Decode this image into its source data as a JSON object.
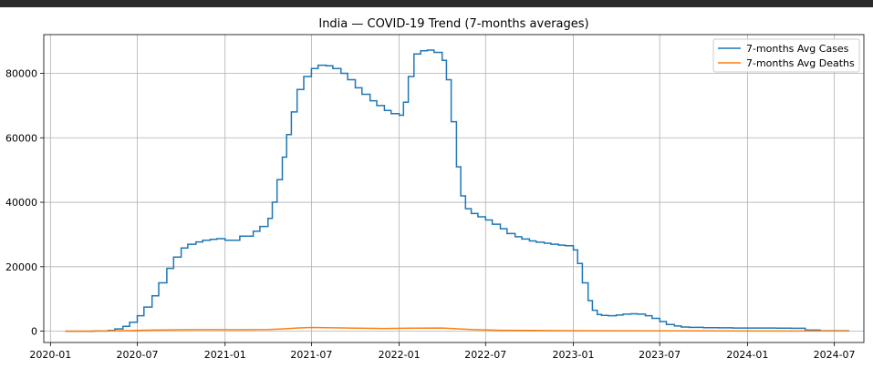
{
  "chart_data": {
    "type": "line",
    "title": "India — COVID-19 Trend (7-months averages)",
    "xlabel": "",
    "ylabel": "",
    "xlim": [
      "2019-12-18",
      "2024-09-01"
    ],
    "ylim": [
      -3500,
      92000
    ],
    "x_ticks": [
      "2020-01",
      "2020-07",
      "2021-01",
      "2021-07",
      "2022-01",
      "2022-07",
      "2023-01",
      "2023-07",
      "2024-01",
      "2024-07"
    ],
    "y_ticks": [
      0,
      20000,
      40000,
      60000,
      80000
    ],
    "y_tick_labels": [
      "0",
      "20000",
      "40000",
      "60000",
      "80000"
    ],
    "grid": true,
    "legend_position": "top-right",
    "series": [
      {
        "name": "7-months Avg Cases",
        "color": "#1f77b4",
        "step": true,
        "x": [
          "2020-02-01",
          "2020-03-01",
          "2020-04-01",
          "2020-05-01",
          "2020-05-15",
          "2020-06-01",
          "2020-06-15",
          "2020-07-01",
          "2020-07-15",
          "2020-08-01",
          "2020-08-15",
          "2020-09-01",
          "2020-09-15",
          "2020-10-01",
          "2020-10-15",
          "2020-11-01",
          "2020-11-15",
          "2020-12-01",
          "2020-12-15",
          "2021-01-01",
          "2021-02-01",
          "2021-03-01",
          "2021-03-15",
          "2021-04-01",
          "2021-04-10",
          "2021-04-20",
          "2021-05-01",
          "2021-05-10",
          "2021-05-20",
          "2021-06-01",
          "2021-06-15",
          "2021-07-01",
          "2021-07-15",
          "2021-08-01",
          "2021-08-15",
          "2021-09-01",
          "2021-09-15",
          "2021-10-01",
          "2021-10-15",
          "2021-11-01",
          "2021-11-15",
          "2021-12-01",
          "2021-12-15",
          "2022-01-01",
          "2022-01-10",
          "2022-01-20",
          "2022-02-01",
          "2022-02-15",
          "2022-03-01",
          "2022-03-15",
          "2022-04-01",
          "2022-04-10",
          "2022-04-20",
          "2022-05-01",
          "2022-05-10",
          "2022-05-20",
          "2022-06-01",
          "2022-06-15",
          "2022-07-01",
          "2022-07-15",
          "2022-08-01",
          "2022-08-15",
          "2022-09-01",
          "2022-09-15",
          "2022-10-01",
          "2022-10-15",
          "2022-11-01",
          "2022-11-15",
          "2022-12-01",
          "2022-12-15",
          "2023-01-01",
          "2023-01-10",
          "2023-01-20",
          "2023-02-01",
          "2023-02-10",
          "2023-02-20",
          "2023-03-01",
          "2023-03-15",
          "2023-04-01",
          "2023-04-15",
          "2023-05-01",
          "2023-05-15",
          "2023-06-01",
          "2023-06-15",
          "2023-07-01",
          "2023-07-15",
          "2023-08-01",
          "2023-08-15",
          "2023-09-01",
          "2023-10-01",
          "2023-11-01",
          "2023-12-01",
          "2024-01-01",
          "2024-02-01",
          "2024-03-01",
          "2024-04-01",
          "2024-05-01",
          "2024-06-01",
          "2024-07-01",
          "2024-08-01"
        ],
        "values": [
          0,
          0,
          50,
          250,
          700,
          1500,
          2800,
          4800,
          7500,
          11000,
          15000,
          19500,
          23000,
          25800,
          27000,
          27700,
          28200,
          28500,
          28700,
          28200,
          29500,
          31000,
          32500,
          35000,
          40000,
          47000,
          54000,
          61000,
          68000,
          75000,
          79000,
          81500,
          82500,
          82300,
          81500,
          80000,
          78000,
          75500,
          73500,
          71500,
          70000,
          68500,
          67500,
          67000,
          71000,
          79000,
          86000,
          87000,
          87200,
          86500,
          84000,
          78000,
          65000,
          51000,
          42000,
          38000,
          36500,
          35500,
          34500,
          33200,
          31800,
          30300,
          29300,
          28600,
          28000,
          27600,
          27300,
          27000,
          26700,
          26500,
          25200,
          21000,
          15000,
          9500,
          6500,
          5200,
          4900,
          4800,
          5000,
          5300,
          5400,
          5300,
          4800,
          4000,
          3000,
          2100,
          1600,
          1300,
          1200,
          1100,
          1050,
          1000,
          1000,
          1000,
          950,
          900,
          350,
          150,
          150,
          150
        ]
      },
      {
        "name": "7-months Avg Deaths",
        "color": "#ff7f0e",
        "step": false,
        "x": [
          "2020-02-01",
          "2020-04-01",
          "2020-06-01",
          "2020-08-01",
          "2020-10-01",
          "2020-12-01",
          "2021-02-01",
          "2021-04-01",
          "2021-05-01",
          "2021-06-01",
          "2021-07-01",
          "2021-08-01",
          "2021-10-01",
          "2021-12-01",
          "2022-02-01",
          "2022-04-01",
          "2022-06-01",
          "2022-08-01",
          "2022-10-01",
          "2022-12-01",
          "2023-02-01",
          "2023-06-01",
          "2023-10-01",
          "2024-02-01",
          "2024-06-01",
          "2024-08-01"
        ],
        "values": [
          0,
          20,
          150,
          350,
          450,
          480,
          450,
          500,
          700,
          1000,
          1150,
          1100,
          950,
          850,
          950,
          1000,
          550,
          300,
          220,
          180,
          140,
          100,
          80,
          70,
          60,
          50
        ]
      }
    ]
  }
}
